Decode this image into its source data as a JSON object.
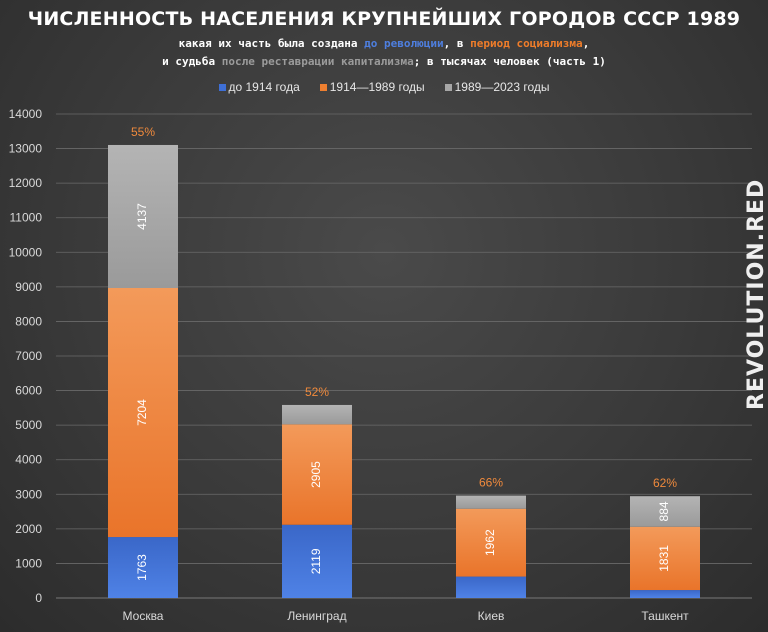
{
  "chart_data": {
    "type": "bar",
    "stacked": true,
    "title": "ЧИСЛЕННОСТЬ НАСЕЛЕНИЯ КРУПНЕЙШИХ ГОРОДОВ СССР 1989",
    "subtitle": {
      "line1_a": "какая их часть была создана ",
      "line1_b": "до революции",
      "line1_c": ", в ",
      "line1_d": "период социализма",
      "line1_e": ",",
      "line2_a": "и судьба ",
      "line2_b": "после реставрации капитализма",
      "line2_c": "; в тысячах человек (часть 1)"
    },
    "categories": [
      "Москва",
      "Ленинград",
      "Киев",
      "Ташкент"
    ],
    "series": [
      {
        "name": "до 1914 года",
        "color": "#3e6fd6",
        "values": [
          1763,
          2119,
          620,
          230
        ],
        "labels": [
          "1763",
          "2119",
          "",
          ""
        ]
      },
      {
        "name": "1914—1989 годы",
        "color": "#ee7f30",
        "values": [
          7204,
          2905,
          1962,
          1831
        ],
        "labels": [
          "7204",
          "2905",
          "1962",
          "1831"
        ]
      },
      {
        "name": "1989—2023 годы",
        "color": "#a6a6a6",
        "values": [
          4137,
          560,
          380,
          884
        ],
        "labels": [
          "4137",
          "",
          "",
          "884"
        ]
      }
    ],
    "top_labels": [
      "55%",
      "52%",
      "66%",
      "62%"
    ],
    "ylim": [
      0,
      14000
    ],
    "yticks": [
      0,
      1000,
      2000,
      3000,
      4000,
      5000,
      6000,
      7000,
      8000,
      9000,
      10000,
      11000,
      12000,
      13000,
      14000
    ],
    "grid": true,
    "legend_position": "top"
  },
  "watermark": "REVOLUTION.RED",
  "colors": {
    "background": "#3a3a3a",
    "grid": "#6a6a6a",
    "axis_text": "#d9d9d9",
    "percent_label": "#f08a3c"
  }
}
